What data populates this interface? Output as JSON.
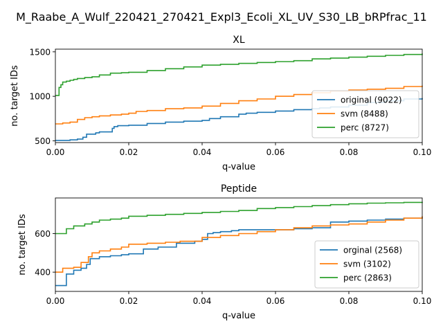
{
  "figure_title": "M_Raabe_A_Wulf_220421_270421_Expl3_Ecoli_XL_UV_S30_LB_bRPfrac_11",
  "colors": {
    "original": "#1f77b4",
    "svm": "#ff7f0e",
    "perc": "#2ca02c"
  },
  "chart_data": [
    {
      "type": "line",
      "title": "XL",
      "xlabel": "q-value",
      "ylabel": "no. target IDs",
      "xlim": [
        0,
        0.1
      ],
      "ylim": [
        480,
        1530
      ],
      "xticks": [
        0,
        0.02,
        0.04,
        0.06,
        0.08,
        0.1
      ],
      "xtick_labels": [
        "0.00",
        "0.02",
        "0.04",
        "0.06",
        "0.08",
        "0.10"
      ],
      "yticks": [
        500,
        1000,
        1500
      ],
      "ytick_labels": [
        "500",
        "1000",
        "1500"
      ],
      "grid": false,
      "legend_position": "lower-right",
      "series": [
        {
          "name": "original (9022)",
          "key": "original",
          "x": [
            0,
            0.004,
            0.006,
            0.0075,
            0.0085,
            0.011,
            0.012,
            0.0155,
            0.016,
            0.017,
            0.02,
            0.025,
            0.03,
            0.035,
            0.04,
            0.042,
            0.045,
            0.05,
            0.052,
            0.055,
            0.06,
            0.065,
            0.07,
            0.072,
            0.075,
            0.08,
            0.085,
            0.09,
            0.095,
            0.1
          ],
          "y": [
            505,
            510,
            520,
            540,
            575,
            590,
            600,
            640,
            660,
            670,
            675,
            695,
            710,
            720,
            730,
            750,
            770,
            800,
            810,
            820,
            835,
            850,
            860,
            870,
            880,
            900,
            930,
            950,
            970,
            980
          ]
        },
        {
          "name": "svm (8488)",
          "key": "svm",
          "x": [
            0,
            0.002,
            0.004,
            0.006,
            0.008,
            0.01,
            0.012,
            0.015,
            0.018,
            0.02,
            0.022,
            0.025,
            0.03,
            0.035,
            0.04,
            0.045,
            0.05,
            0.055,
            0.06,
            0.065,
            0.07,
            0.075,
            0.08,
            0.085,
            0.09,
            0.095,
            0.1
          ],
          "y": [
            690,
            700,
            710,
            740,
            760,
            770,
            780,
            790,
            800,
            810,
            830,
            840,
            860,
            870,
            890,
            920,
            950,
            970,
            1000,
            1020,
            1040,
            1060,
            1070,
            1080,
            1090,
            1110,
            1120
          ]
        },
        {
          "name": "perc (8727)",
          "key": "perc",
          "x": [
            0,
            0.001,
            0.0015,
            0.002,
            0.003,
            0.004,
            0.005,
            0.006,
            0.008,
            0.01,
            0.012,
            0.015,
            0.018,
            0.02,
            0.025,
            0.03,
            0.035,
            0.04,
            0.045,
            0.05,
            0.055,
            0.06,
            0.065,
            0.07,
            0.075,
            0.08,
            0.085,
            0.09,
            0.095,
            0.1
          ],
          "y": [
            1010,
            1100,
            1130,
            1160,
            1170,
            1180,
            1190,
            1200,
            1210,
            1220,
            1240,
            1260,
            1265,
            1270,
            1290,
            1310,
            1330,
            1350,
            1360,
            1370,
            1380,
            1390,
            1400,
            1420,
            1430,
            1440,
            1450,
            1460,
            1470,
            1480
          ]
        }
      ]
    },
    {
      "type": "line",
      "title": "Peptide",
      "xlabel": "q-value",
      "ylabel": "no. target IDs",
      "xlim": [
        0,
        0.1
      ],
      "ylim": [
        300,
        785
      ],
      "xticks": [
        0,
        0.02,
        0.04,
        0.06,
        0.08,
        0.1
      ],
      "xtick_labels": [
        "0.00",
        "0.02",
        "0.04",
        "0.06",
        "0.08",
        "0.10"
      ],
      "yticks": [
        400,
        600
      ],
      "ytick_labels": [
        "400",
        "600"
      ],
      "grid": false,
      "legend_position": "lower-right",
      "series": [
        {
          "name": "orginal (2568)",
          "key": "original",
          "x": [
            0,
            0.003,
            0.005,
            0.007,
            0.0085,
            0.0095,
            0.012,
            0.015,
            0.018,
            0.02,
            0.024,
            0.028,
            0.033,
            0.038,
            0.04,
            0.0415,
            0.043,
            0.045,
            0.048,
            0.05,
            0.055,
            0.06,
            0.065,
            0.07,
            0.075,
            0.08,
            0.085,
            0.09,
            0.095,
            0.1
          ],
          "y": [
            330,
            390,
            410,
            420,
            440,
            470,
            480,
            485,
            490,
            495,
            520,
            530,
            550,
            560,
            570,
            600,
            605,
            610,
            615,
            620,
            620,
            620,
            625,
            630,
            660,
            665,
            670,
            675,
            680,
            685
          ]
        },
        {
          "name": "svm (3102)",
          "key": "svm",
          "x": [
            0,
            0.002,
            0.005,
            0.007,
            0.009,
            0.01,
            0.012,
            0.015,
            0.018,
            0.02,
            0.025,
            0.03,
            0.034,
            0.04,
            0.045,
            0.05,
            0.055,
            0.06,
            0.065,
            0.07,
            0.075,
            0.08,
            0.085,
            0.09,
            0.095,
            0.1
          ],
          "y": [
            400,
            420,
            425,
            450,
            480,
            500,
            510,
            520,
            530,
            545,
            550,
            555,
            560,
            580,
            590,
            600,
            610,
            620,
            630,
            640,
            645,
            650,
            660,
            670,
            680,
            690
          ]
        },
        {
          "name": "perc (2863)",
          "key": "perc",
          "x": [
            0,
            0.003,
            0.005,
            0.008,
            0.01,
            0.012,
            0.015,
            0.018,
            0.02,
            0.025,
            0.03,
            0.035,
            0.04,
            0.045,
            0.05,
            0.055,
            0.06,
            0.065,
            0.07,
            0.075,
            0.08,
            0.085,
            0.09,
            0.095,
            0.1
          ],
          "y": [
            600,
            625,
            640,
            650,
            660,
            670,
            675,
            680,
            690,
            695,
            700,
            705,
            710,
            715,
            720,
            730,
            735,
            740,
            745,
            750,
            755,
            758,
            760,
            762,
            765
          ]
        }
      ]
    }
  ]
}
